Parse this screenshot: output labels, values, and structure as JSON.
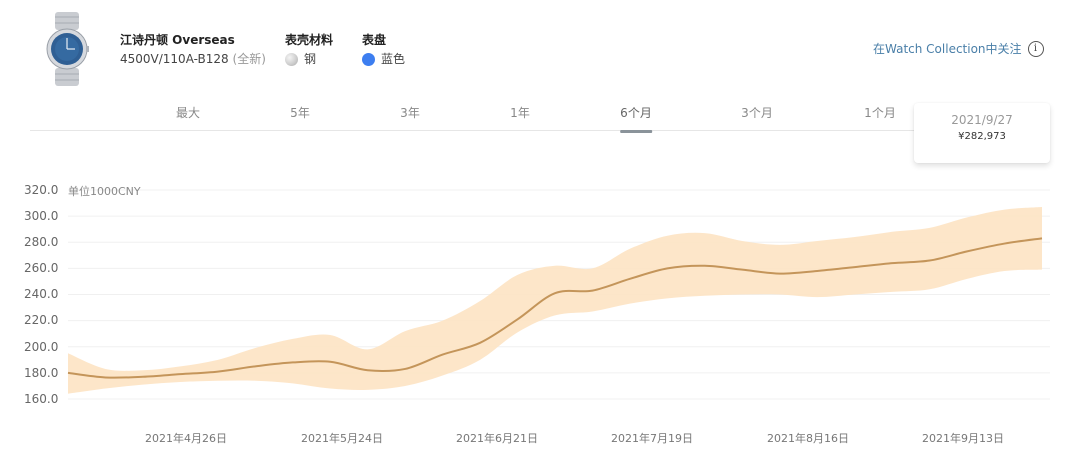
{
  "product": {
    "name": "江诗丹顿 Overseas",
    "reference": "4500V/110A-B128",
    "condition": "(全新)",
    "image_icon": "watch-blue-dial-icon"
  },
  "attributes": [
    {
      "label": "表壳材料",
      "value": "钢",
      "swatch": "steel",
      "color": "#c8c8c8"
    },
    {
      "label": "表盘",
      "value": "蓝色",
      "swatch": "blue",
      "color": "#3d7ef0"
    }
  ],
  "follow": {
    "label": "在Watch Collection中关注",
    "icon": "info-icon",
    "color": "#4a7fa8"
  },
  "tabs": [
    {
      "label": "最大",
      "active": false
    },
    {
      "label": "5年",
      "active": false
    },
    {
      "label": "3年",
      "active": false
    },
    {
      "label": "1年",
      "active": false
    },
    {
      "label": "6个月",
      "active": true
    },
    {
      "label": "3个月",
      "active": false
    },
    {
      "label": "1个月",
      "active": false
    }
  ],
  "tooltip": {
    "date": "2021/9/27",
    "price": "¥282,973"
  },
  "chart_data": {
    "type": "area",
    "title": "",
    "unit_label": "单位1000CNY",
    "xlabel": "",
    "ylabel": "单位1000CNY",
    "ylim": [
      160,
      320
    ],
    "yticks": [
      "320.0",
      "300.0",
      "280.0",
      "260.0",
      "240.0",
      "220.0",
      "200.0",
      "180.0",
      "160.0"
    ],
    "xticks": [
      "2021年4月26日",
      "2021年5月24日",
      "2021年6月21日",
      "2021年7月19日",
      "2021年8月16日",
      "2021年9月13日"
    ],
    "grid": true,
    "legend": "none",
    "line_color": "#c4955a",
    "band_color": "#fde3c3",
    "x": [
      "2021/3/29",
      "2021/4/5",
      "2021/4/12",
      "2021/4/19",
      "2021/4/26",
      "2021/5/3",
      "2021/5/10",
      "2021/5/17",
      "2021/5/24",
      "2021/5/31",
      "2021/6/7",
      "2021/6/14",
      "2021/6/21",
      "2021/6/28",
      "2021/7/5",
      "2021/7/12",
      "2021/7/19",
      "2021/7/26",
      "2021/8/2",
      "2021/8/9",
      "2021/8/16",
      "2021/8/23",
      "2021/8/30",
      "2021/9/6",
      "2021/9/13",
      "2021/9/20",
      "2021/9/27"
    ],
    "series": [
      {
        "name": "price",
        "values": [
          180,
          176.5,
          177,
          179,
          181,
          185,
          188,
          188.5,
          182,
          183,
          194,
          203,
          221,
          241,
          243,
          252,
          260,
          262,
          259,
          256,
          258,
          261,
          264,
          266,
          273,
          279,
          283
        ]
      },
      {
        "name": "upper",
        "values": [
          195,
          183,
          182,
          185,
          190,
          199,
          206,
          209,
          198,
          212,
          220,
          235,
          255,
          262,
          260,
          275,
          285,
          287,
          281,
          278,
          281,
          284,
          288,
          291,
          299,
          305,
          307
        ]
      },
      {
        "name": "lower",
        "values": [
          164,
          168,
          171,
          173,
          174,
          174,
          172,
          168,
          167,
          170,
          178,
          190,
          211,
          224,
          227,
          233,
          237,
          239,
          240,
          240,
          238,
          240,
          242,
          244,
          252,
          258,
          259
        ]
      }
    ]
  }
}
